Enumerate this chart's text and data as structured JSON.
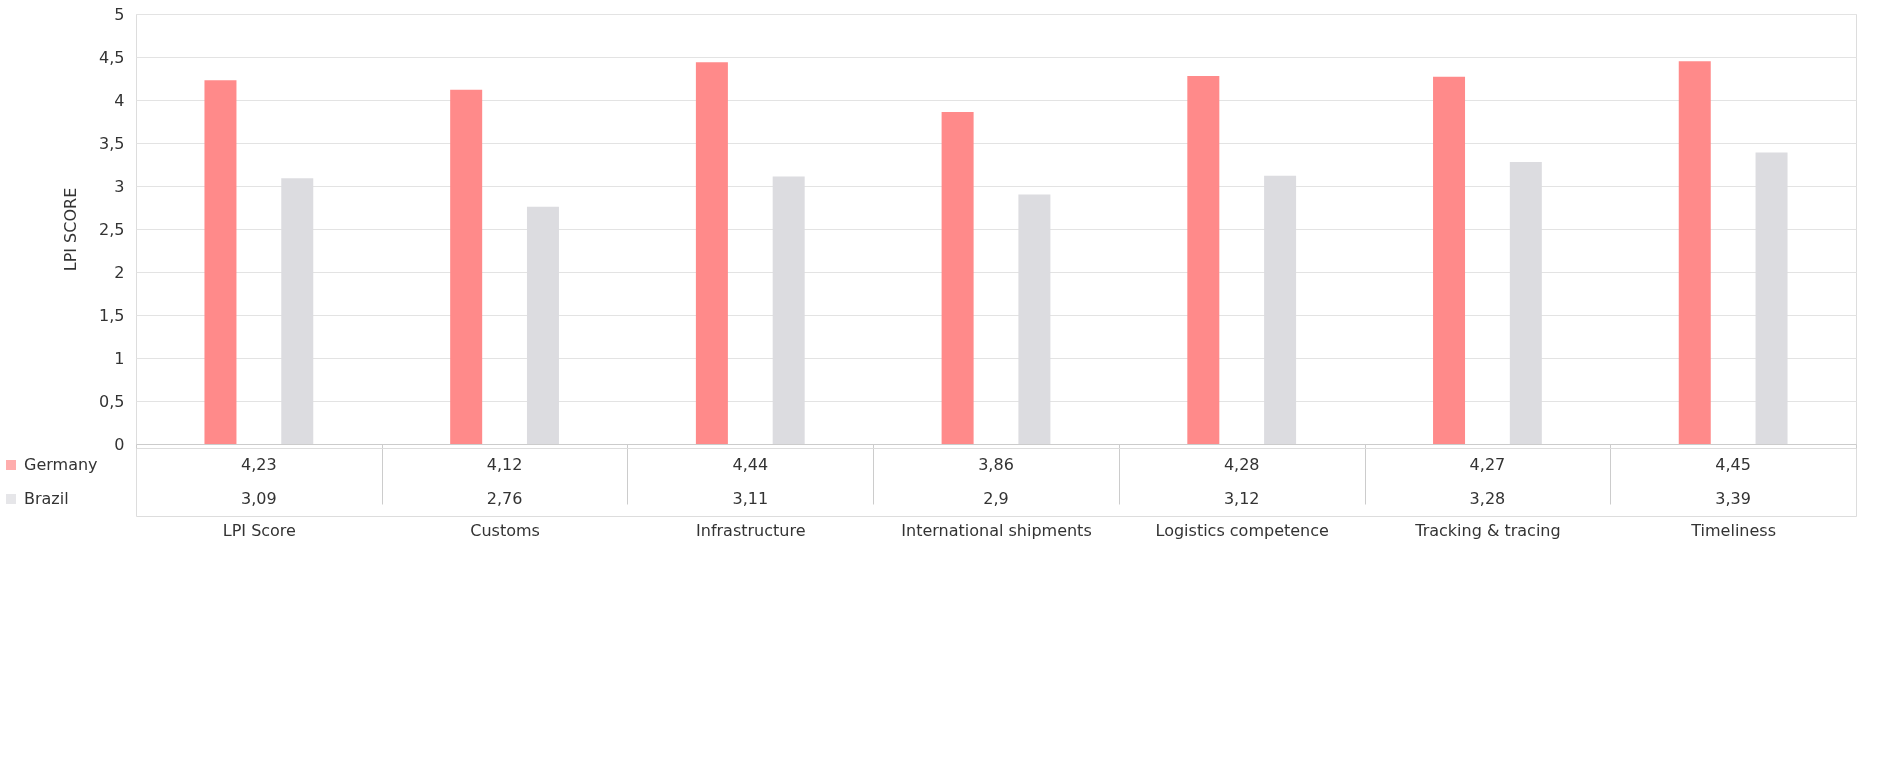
{
  "chart_data": {
    "type": "bar",
    "ylabel": "LPI SCORE",
    "categories": [
      "LPI Score",
      "Customs",
      "Infrastructure",
      "International shipments",
      "Logistics competence",
      "Tracking & tracing",
      "Timeliness"
    ],
    "series": [
      {
        "name": "Germany",
        "color": "#ff8a8a",
        "values": [
          4.23,
          4.12,
          4.44,
          3.86,
          4.28,
          4.27,
          4.45
        ],
        "value_labels": [
          "4,23",
          "4,12",
          "4,44",
          "3,86",
          "4,28",
          "4,27",
          "4,45"
        ]
      },
      {
        "name": "Brazil",
        "color": "#dcdce0",
        "values": [
          3.09,
          2.76,
          3.11,
          2.9,
          3.12,
          3.28,
          3.39
        ],
        "value_labels": [
          "3,09",
          "2,76",
          "3,11",
          "2,9",
          "3,12",
          "3,28",
          "3,39"
        ]
      }
    ],
    "ylim": [
      0,
      5
    ],
    "yticks": [
      0,
      {
        "value": 0.5,
        "label": "0,5"
      },
      1,
      {
        "value": 1.5,
        "label": "1,5"
      },
      2,
      {
        "value": 2.5,
        "label": "2,5"
      },
      3,
      {
        "value": 3.5,
        "label": "3,5"
      },
      4,
      {
        "value": 4.5,
        "label": "4,5"
      },
      5
    ],
    "grid": "y",
    "legend": "bottom left"
  }
}
